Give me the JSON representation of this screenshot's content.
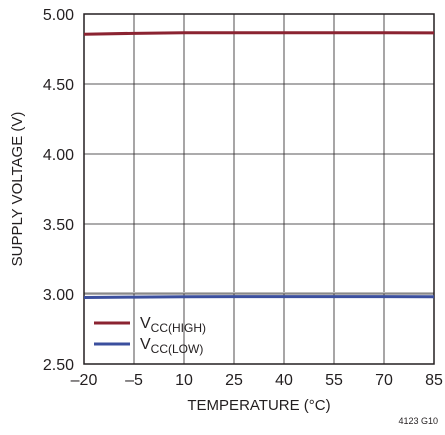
{
  "chart_data": {
    "type": "line",
    "xlabel": "TEMPERATURE (°C)",
    "ylabel": "SUPPLY VOLTAGE (V)",
    "xlim": [
      -20,
      85
    ],
    "ylim": [
      2.5,
      5.0
    ],
    "x_ticks": [
      "–20",
      "–5",
      "10",
      "25",
      "40",
      "55",
      "70",
      "85"
    ],
    "y_ticks": [
      "5.00",
      "4.50",
      "4.00",
      "3.50",
      "3.00",
      "2.50"
    ],
    "x": [
      -20,
      -5,
      10,
      25,
      40,
      55,
      70,
      85
    ],
    "series": [
      {
        "name": "V",
        "sub": "CC(HIGH)",
        "color": "#8b2331",
        "values": [
          4.855,
          4.862,
          4.866,
          4.866,
          4.866,
          4.866,
          4.866,
          4.865
        ]
      },
      {
        "name": "V",
        "sub": "CC(LOW)",
        "color": "#3b4f9e",
        "values": [
          2.975,
          2.978,
          2.98,
          2.981,
          2.981,
          2.981,
          2.981,
          2.98
        ]
      }
    ],
    "grid": true,
    "legend_position": "bottom-left",
    "figure_id": "4123 G10"
  }
}
